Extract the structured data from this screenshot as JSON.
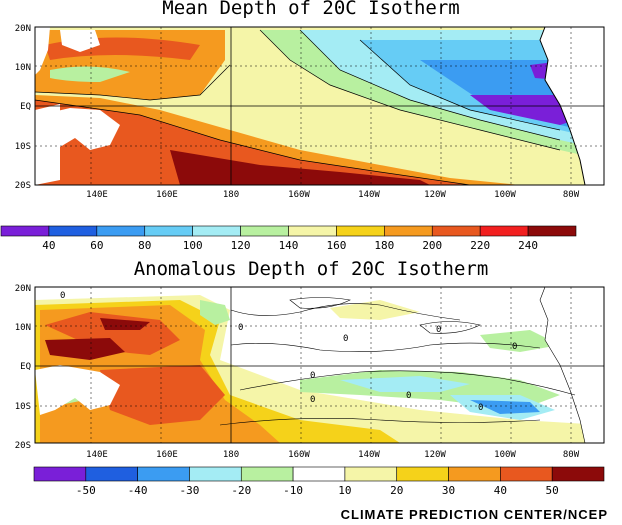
{
  "panels": [
    {
      "title": "Mean Depth of 20C Isotherm",
      "colorbar": {
        "labels": [
          "40",
          "60",
          "80",
          "100",
          "120",
          "140",
          "160",
          "180",
          "200",
          "220",
          "240"
        ],
        "colors": [
          "#7a1fd8",
          "#1f5fe0",
          "#3b9cf2",
          "#66ccf5",
          "#a4ecf4",
          "#b8f0a0",
          "#f5f5a8",
          "#f5d21a",
          "#f59a1f",
          "#e8581f",
          "#f21f1f",
          "#8c0a0a"
        ]
      }
    },
    {
      "title": "Anomalous Depth of 20C Isotherm",
      "colorbar": {
        "labels": [
          "-50",
          "-40",
          "-30",
          "-20",
          "-10",
          "10",
          "20",
          "30",
          "40",
          "50"
        ],
        "colors": [
          "#7a1fd8",
          "#1f5fe0",
          "#3b9cf2",
          "#a4ecf4",
          "#b8f0a0",
          "#ffffff",
          "#f5f5a8",
          "#f5d21a",
          "#f59a1f",
          "#e8581f",
          "#8c0a0a"
        ]
      }
    }
  ],
  "map_axes": {
    "lat_labels": [
      "20N",
      "10N",
      "EQ",
      "10S",
      "20S"
    ],
    "lon_labels": [
      "140E",
      "160E",
      "180",
      "160W",
      "140W",
      "120W",
      "100W",
      "80W"
    ]
  },
  "contour_labels": [
    "0",
    "0",
    "0",
    "0",
    "0",
    "0",
    "0",
    "0",
    "0"
  ],
  "footer": "CLIMATE PREDICTION CENTER/NCEP"
}
